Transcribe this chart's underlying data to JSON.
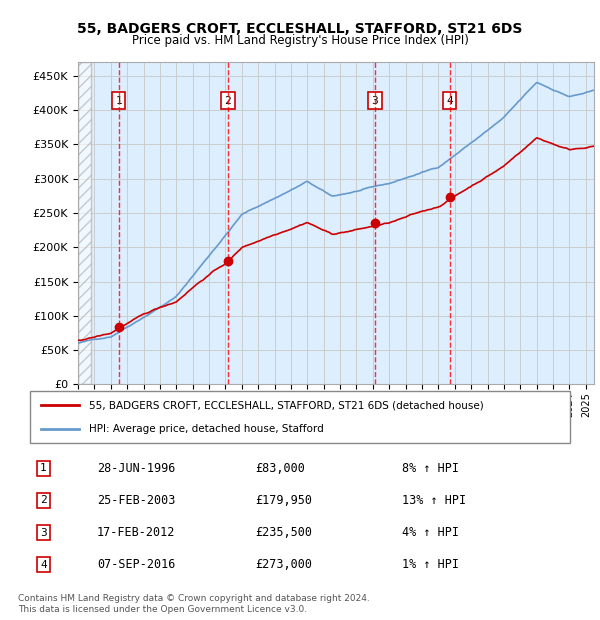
{
  "title": "55, BADGERS CROFT, ECCLESHALL, STAFFORD, ST21 6DS",
  "subtitle": "Price paid vs. HM Land Registry's House Price Index (HPI)",
  "ylabel": "",
  "ylim": [
    0,
    470000
  ],
  "yticks": [
    0,
    50000,
    100000,
    150000,
    200000,
    250000,
    300000,
    350000,
    400000,
    450000
  ],
  "ytick_labels": [
    "£0",
    "£50K",
    "£100K",
    "£150K",
    "£200K",
    "£250K",
    "£300K",
    "£350K",
    "£400K",
    "£450K"
  ],
  "sale_dates": [
    "1996-06-28",
    "2003-02-25",
    "2012-02-17",
    "2016-09-07"
  ],
  "sale_prices": [
    83000,
    179950,
    235500,
    273000
  ],
  "sale_labels": [
    "1",
    "2",
    "3",
    "4"
  ],
  "sale_pct": [
    "8%",
    "13%",
    "4%",
    "1%"
  ],
  "legend_property": "55, BADGERS CROFT, ECCLESHALL, STAFFORD, ST21 6DS (detached house)",
  "legend_hpi": "HPI: Average price, detached house, Stafford",
  "table_rows": [
    {
      "num": "1",
      "date": "28-JUN-1996",
      "price": "£83,000",
      "pct": "8% ↑ HPI"
    },
    {
      "num": "2",
      "date": "25-FEB-2003",
      "price": "£179,950",
      "pct": "13% ↑ HPI"
    },
    {
      "num": "3",
      "date": "17-FEB-2012",
      "price": "£235,500",
      "pct": "4% ↑ HPI"
    },
    {
      "num": "4",
      "date": "07-SEP-2016",
      "price": "£273,000",
      "pct": "1% ↑ HPI"
    }
  ],
  "footnote": "Contains HM Land Registry data © Crown copyright and database right 2024.\nThis data is licensed under the Open Government Licence v3.0.",
  "property_color": "#cc0000",
  "hpi_color": "#6699cc",
  "hatch_color": "#cccccc",
  "grid_color": "#cccccc",
  "label_box_color": "#cc0000",
  "bg_plot": "#ddeeff",
  "bg_hatch": "#e8e8e8"
}
